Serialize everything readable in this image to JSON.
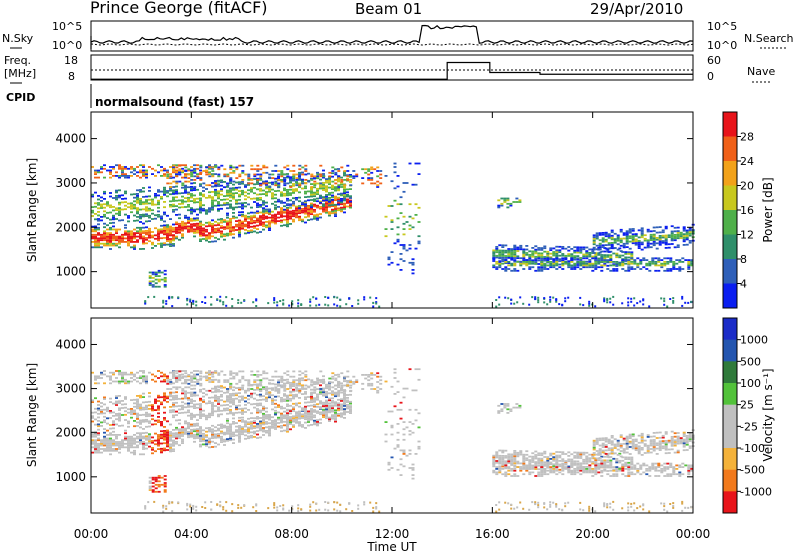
{
  "header": {
    "station": "Prince George (fitACF)",
    "beam": "Beam 01",
    "date": "29/Apr/2010"
  },
  "panels": {
    "nsky_label": "N.Sky",
    "nsky_ticks": [
      "10^5",
      "10^0"
    ],
    "nsearch_label": "N.Search",
    "freq_label": [
      "Freq.",
      "[MHz]"
    ],
    "freq_ticks": [
      "18",
      "8"
    ],
    "nave_label": "Nave",
    "nave_ticks": [
      "60",
      "0"
    ],
    "cpid_label": "CPID",
    "cpid_value": "normalsound (fast) 157"
  },
  "chart_data": {
    "type": "heatmap",
    "xlabel": "Time UT",
    "x_ticks": [
      "00:00",
      "04:00",
      "08:00",
      "12:00",
      "16:00",
      "20:00",
      "00:00"
    ],
    "xlim_hours": [
      0,
      24
    ],
    "ylabel": "Slant Range [km]",
    "y_ticks": [
      1000,
      2000,
      3000,
      4000
    ],
    "ylim_km": [
      180,
      4600
    ],
    "power": {
      "colorbar_label": "Power [dB]",
      "colorbar_ticks": [
        "4",
        "8",
        "12",
        "16",
        "20",
        "24",
        "28"
      ],
      "colors": [
        "#0a1ef0",
        "#2e5fb8",
        "#2f8f6a",
        "#4fb04a",
        "#c8c81e",
        "#f2a21a",
        "#f06018",
        "#e8141a"
      ]
    },
    "velocity": {
      "colorbar_label": "Velocity [m s⁻¹]",
      "colorbar_ticks": [
        "1000",
        "500",
        "100",
        "25",
        "-25",
        "-100",
        "-500",
        "-1000"
      ],
      "colors": [
        "#1b2cc8",
        "#2456b0",
        "#2f7a3a",
        "#52c23a",
        "#c0c0c0",
        "#c0c0c0",
        "#f4b23a",
        "#f27a1c",
        "#e8141a"
      ]
    }
  }
}
